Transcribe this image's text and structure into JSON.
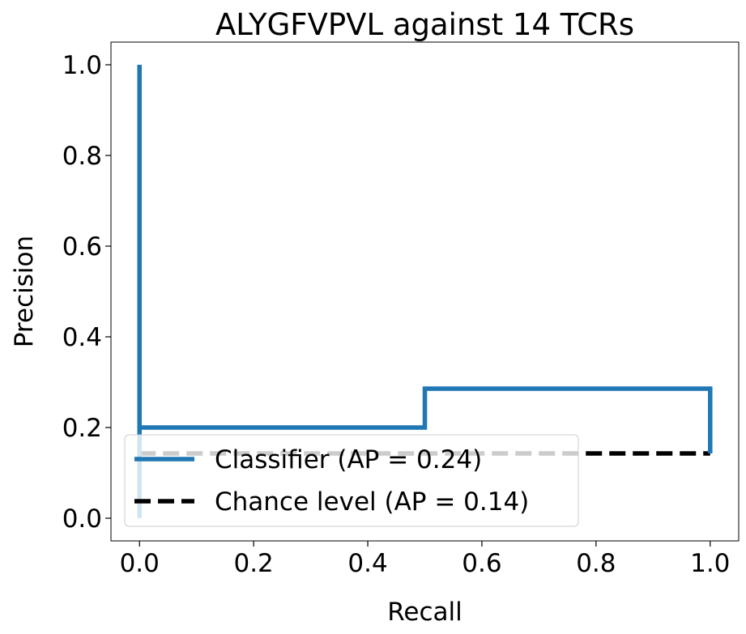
{
  "chart_data": {
    "type": "line",
    "title": "ALYGFVPVL against 14 TCRs",
    "xlabel": "Recall",
    "ylabel": "Precision",
    "xlim": [
      -0.05,
      1.05
    ],
    "ylim": [
      -0.05,
      1.05
    ],
    "xticks": [
      0.0,
      0.2,
      0.4,
      0.6,
      0.8,
      1.0
    ],
    "xtick_labels": [
      "0.0",
      "0.2",
      "0.4",
      "0.6",
      "0.8",
      "1.0"
    ],
    "yticks": [
      0.0,
      0.2,
      0.4,
      0.6,
      0.8,
      1.0
    ],
    "ytick_labels": [
      "0.0",
      "0.2",
      "0.4",
      "0.6",
      "0.8",
      "1.0"
    ],
    "grid": false,
    "legend_position": "lower left",
    "series": [
      {
        "name": "Classifier (AP = 0.24)",
        "style": "solid-step",
        "color": "#1f77b4",
        "points": [
          [
            0.0,
            0.0
          ],
          [
            0.0,
            1.0
          ],
          [
            0.0,
            0.2
          ],
          [
            0.5,
            0.2
          ],
          [
            0.5,
            0.2857
          ],
          [
            1.0,
            0.2857
          ],
          [
            1.0,
            0.1429
          ]
        ]
      },
      {
        "name": "Chance level (AP = 0.14)",
        "style": "dashed",
        "color": "#000000",
        "points": [
          [
            0.0,
            0.1429
          ],
          [
            1.0,
            0.1429
          ]
        ]
      }
    ]
  }
}
